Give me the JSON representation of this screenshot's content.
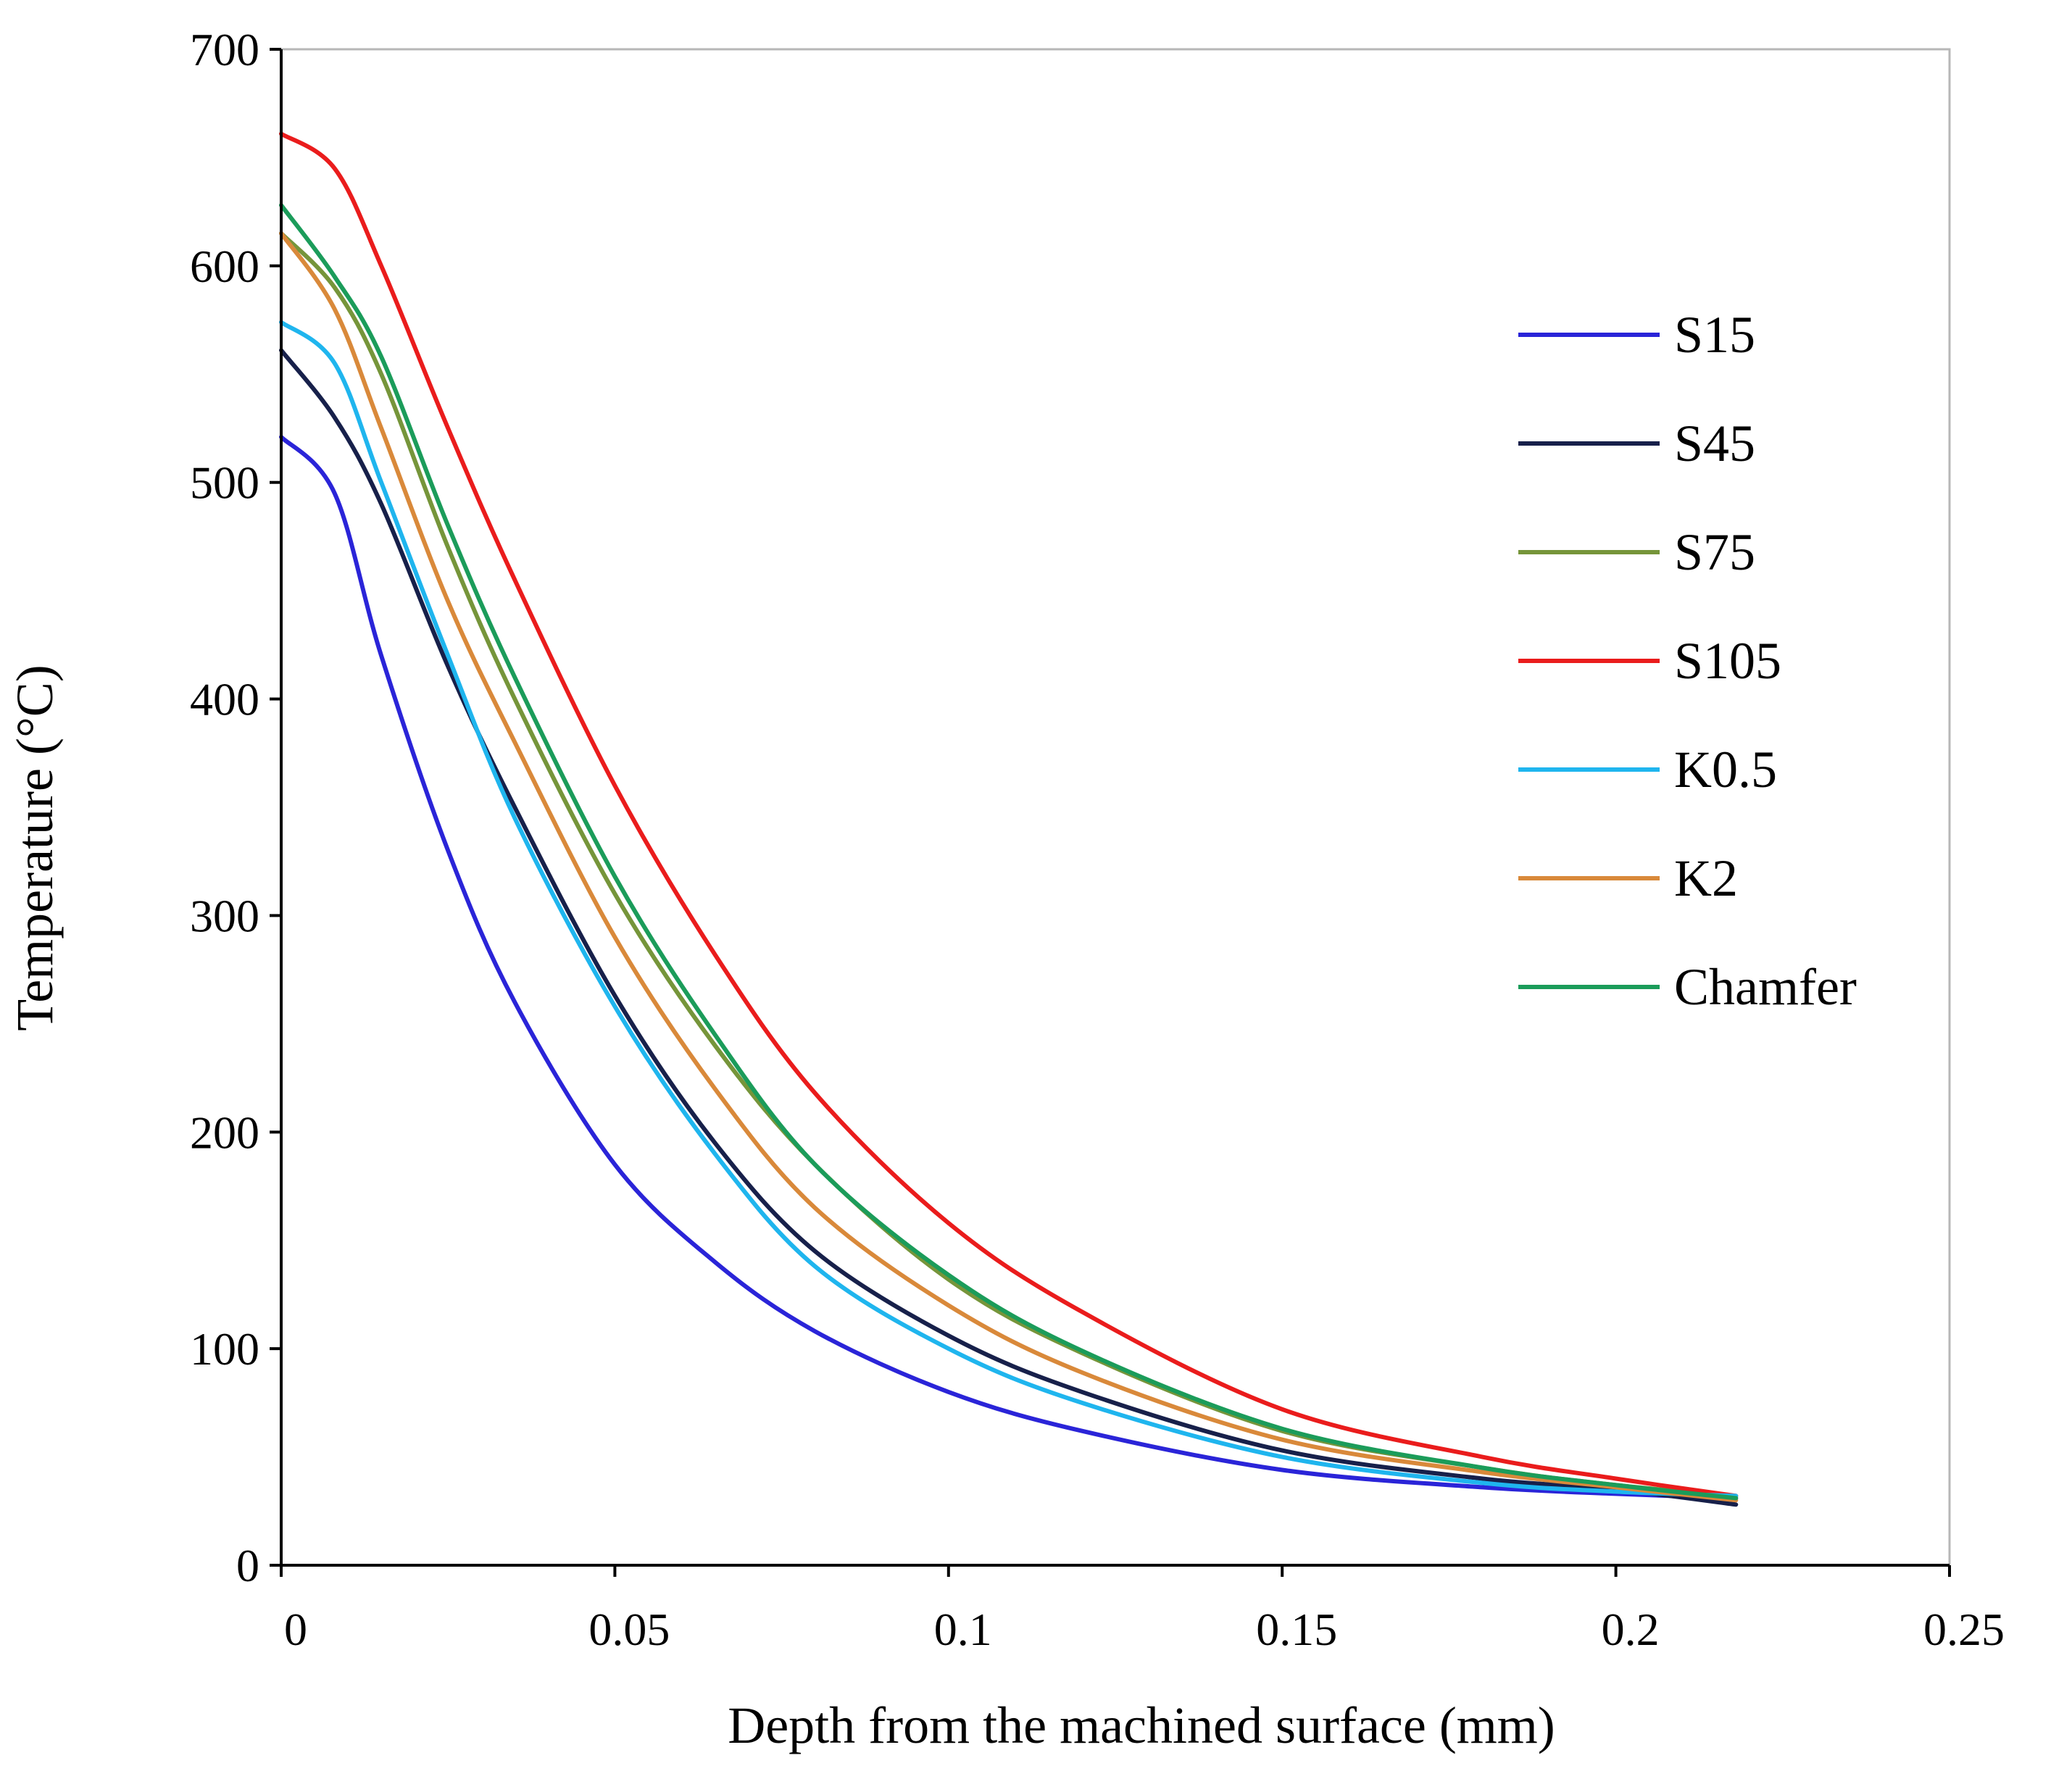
{
  "chart_data": {
    "type": "line",
    "title": "",
    "xlabel": "Depth from the machined surface (mm)",
    "ylabel": "Temperature (°C)",
    "xlim": [
      0,
      0.25
    ],
    "ylim": [
      0,
      700
    ],
    "xticks": [
      0,
      0.05,
      0.1,
      0.15,
      0.2,
      0.25
    ],
    "xtick_labels": [
      "0",
      "0.05",
      "0.1",
      "0.15",
      "0.2",
      "0.25"
    ],
    "yticks": [
      0,
      100,
      200,
      300,
      400,
      500,
      600,
      700
    ],
    "ytick_labels": [
      "0",
      "100",
      "200",
      "300",
      "400",
      "500",
      "600",
      "700"
    ],
    "grid": false,
    "legend_position": "right",
    "x": [
      0,
      0.008,
      0.015,
      0.025,
      0.035,
      0.05,
      0.065,
      0.08,
      0.1,
      0.12,
      0.15,
      0.18,
      0.2,
      0.218
    ],
    "series": [
      {
        "name": "S15",
        "color": "#2a24d8",
        "values": [
          521,
          495,
          420,
          330,
          260,
          185,
          140,
          108,
          80,
          62,
          44,
          36,
          33,
          31
        ]
      },
      {
        "name": "S45",
        "color": "#17204a",
        "values": [
          561,
          530,
          490,
          415,
          350,
          263,
          195,
          145,
          106,
          80,
          53,
          40,
          35,
          28
        ]
      },
      {
        "name": "S75",
        "color": "#76953a",
        "values": [
          615,
          590,
          550,
          470,
          400,
          310,
          240,
          185,
          132,
          98,
          62,
          45,
          37,
          32
        ]
      },
      {
        "name": "S105",
        "color": "#ea1c1c",
        "values": [
          661,
          645,
          600,
          525,
          455,
          360,
          282,
          218,
          158,
          117,
          72,
          50,
          40,
          32
        ]
      },
      {
        "name": "K0.5",
        "color": "#1fb5ee",
        "values": [
          574,
          555,
          500,
          420,
          345,
          258,
          190,
          138,
          100,
          75,
          50,
          38,
          34,
          32
        ]
      },
      {
        "name": "K2",
        "color": "#d9893a",
        "values": [
          615,
          580,
          525,
          445,
          380,
          290,
          220,
          165,
          120,
          89,
          58,
          43,
          36,
          30
        ]
      },
      {
        "name": "Chamfer",
        "color": "#1b9c5a",
        "values": [
          628,
          595,
          558,
          480,
          410,
          318,
          245,
          185,
          134,
          99,
          63,
          45,
          37,
          31
        ]
      }
    ]
  }
}
